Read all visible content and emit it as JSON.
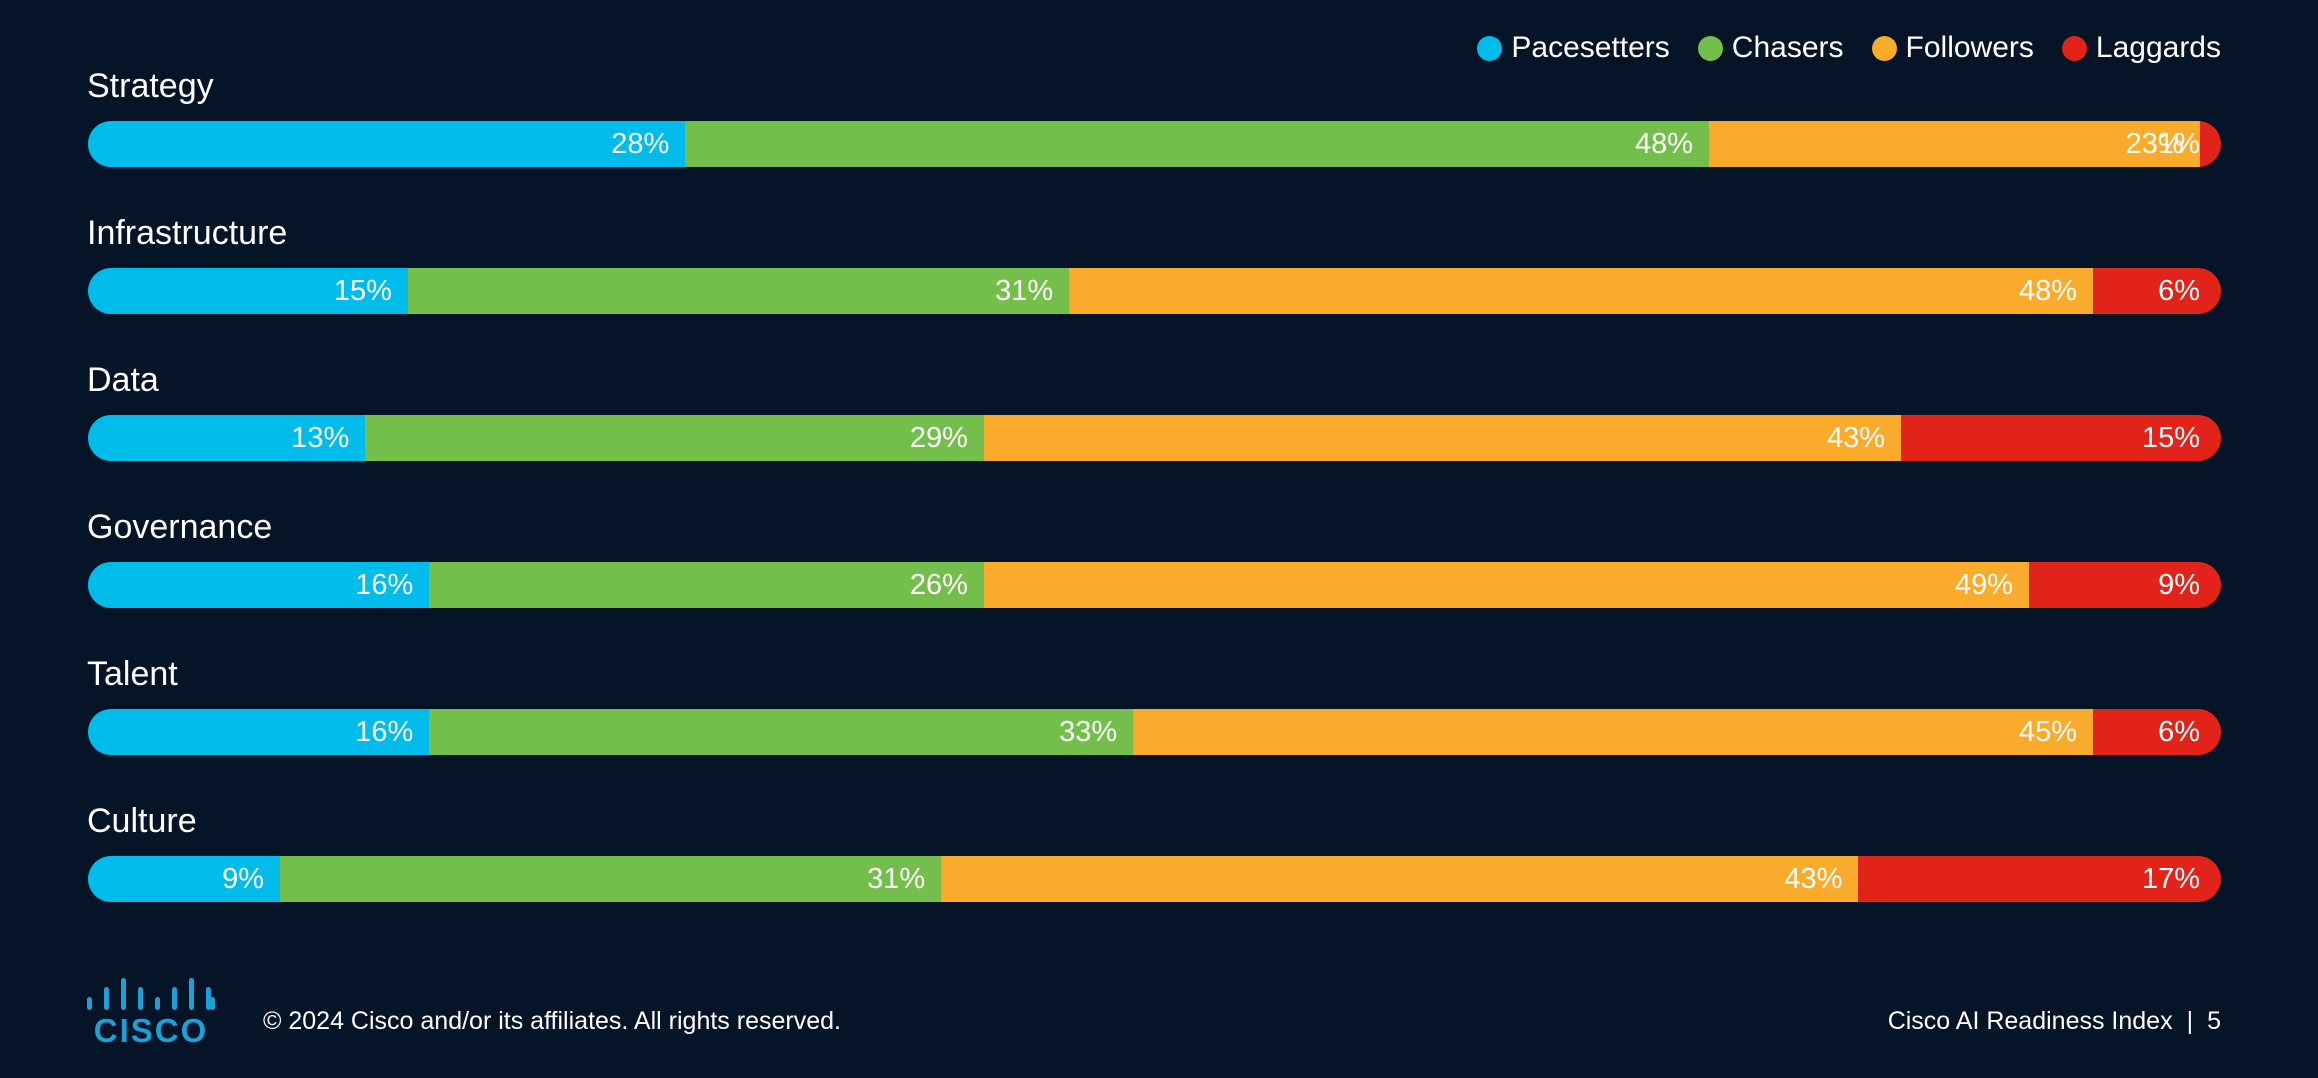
{
  "legend": {
    "items": [
      {
        "label": "Pacesetters",
        "color": "#00BCEB"
      },
      {
        "label": "Chasers",
        "color": "#74BF4B"
      },
      {
        "label": "Followers",
        "color": "#FBAB2C"
      },
      {
        "label": "Laggards",
        "color": "#E2231A"
      }
    ]
  },
  "chart_data": {
    "type": "bar",
    "orientation": "horizontal",
    "stacked": true,
    "normalized": true,
    "categories": [
      "Strategy",
      "Infrastructure",
      "Data",
      "Governance",
      "Talent",
      "Culture"
    ],
    "series": [
      {
        "name": "Pacesetters",
        "color": "#00BCEB",
        "values": [
          28,
          15,
          13,
          16,
          16,
          9
        ],
        "labels": [
          "28%",
          "15%",
          "13%",
          "16%",
          "16%",
          "9%"
        ]
      },
      {
        "name": "Chasers",
        "color": "#74BF4B",
        "values": [
          48,
          31,
          29,
          26,
          33,
          31
        ],
        "labels": [
          "48%",
          "31%",
          "29%",
          "26%",
          "33%",
          "31%"
        ]
      },
      {
        "name": "Followers",
        "color": "#FBAB2C",
        "values": [
          23,
          48,
          43,
          49,
          45,
          43
        ],
        "labels": [
          "23%",
          "48%",
          "43%",
          "49%",
          "45%",
          "43%"
        ]
      },
      {
        "name": "Laggards",
        "color": "#E2231A",
        "values": [
          1,
          6,
          15,
          9,
          6,
          17
        ],
        "labels": [
          "1%",
          "6%",
          "15%",
          "9%",
          "6%",
          "17%"
        ]
      }
    ],
    "legend_position": "top-right",
    "grid": false
  },
  "footer": {
    "logo_text": "CISCO",
    "copyright": "© 2024 Cisco and/or its affiliates. All rights reserved.",
    "report_title": "Cisco AI Readiness Index",
    "separator": "|",
    "page_number": "5"
  }
}
